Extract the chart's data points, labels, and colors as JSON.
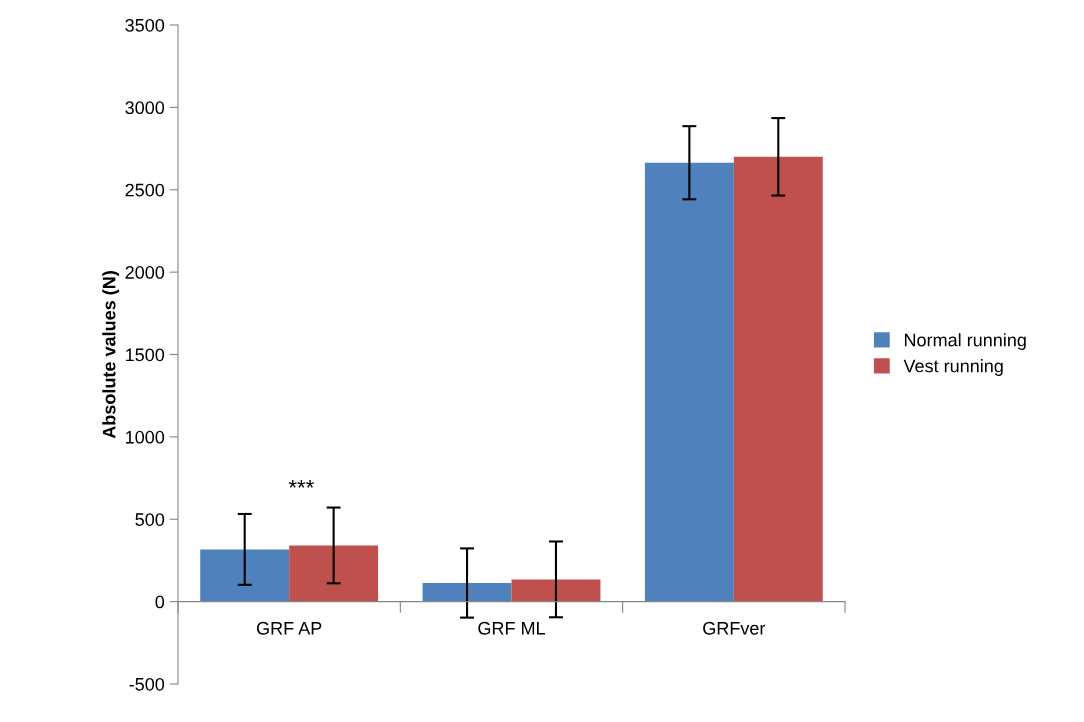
{
  "chart_data": {
    "type": "bar",
    "ylabel": "Absolute values (N)",
    "categories": [
      "GRF AP",
      "GRF ML",
      "GRFver"
    ],
    "series": [
      {
        "name": "Normal running",
        "color": "#4f81bd",
        "values": [
          317,
          113,
          2664
        ],
        "errors": [
          215,
          210,
          222
        ]
      },
      {
        "name": "Vest running",
        "color": "#c0504d",
        "values": [
          341,
          135,
          2700
        ],
        "errors": [
          230,
          230,
          235
        ]
      }
    ],
    "ylim": [
      -500,
      3500
    ],
    "yticks": [
      -500,
      0,
      500,
      1000,
      1500,
      2000,
      2500,
      3000,
      3500
    ],
    "grid": false,
    "legend": "right",
    "annotations": [
      "***"
    ]
  }
}
